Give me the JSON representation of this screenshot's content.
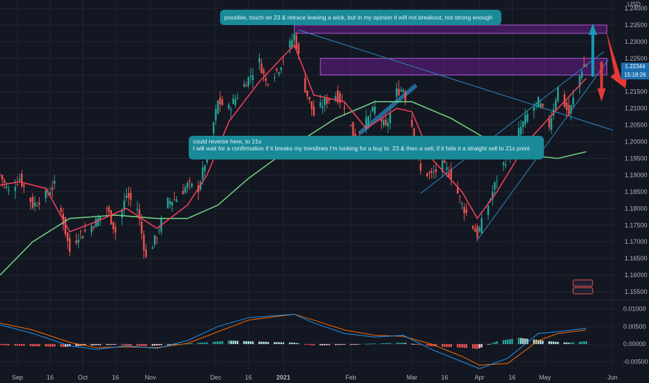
{
  "currency_label": "USD",
  "colors": {
    "bg": "#131722",
    "grid": "#222631",
    "up": "#26a69a",
    "down": "#ef5350",
    "ema_fast": "#f23f5a",
    "sma_slow": "#6fcf82",
    "zone": "#7b1fa2",
    "trendline": "#2a8cc7",
    "macd": "#2196f3",
    "signal": "#ff6d00",
    "annotation": "#1a8a99",
    "arrow_up": "#1a9bb5",
    "arrow_down": "#e53935"
  },
  "annotations": {
    "top_note": "possible, touch on 23 & retrace leaving a wick, but in my opinion it will not breakout, not strong enough",
    "mid_note_line1": "could reverse here, to 21s",
    "mid_note_line2": "I will wait for a confirmation if it breaks my trendines I'm looking for a buy to  23 & then a sell, if it fails it a straight sell to 21s point"
  },
  "last_price": {
    "value": "1.22344",
    "countdown": "15:18:26"
  },
  "chart_data": [
    {
      "type": "candlestick",
      "title": "",
      "x_ticks": [
        "Sep",
        "16",
        "Oct",
        "16",
        "Nov",
        "Dec",
        "16",
        "2021",
        "Feb",
        "Mar",
        "16",
        "Apr",
        "16",
        "May",
        "Jun"
      ],
      "y_ticks": [
        "1.24000",
        "1.23500",
        "1.23000",
        "1.22500",
        "1.22000",
        "1.21500",
        "1.21000",
        "1.20500",
        "1.20000",
        "1.19500",
        "1.19000",
        "1.18500",
        "1.18000",
        "1.17500",
        "1.17000",
        "1.16500",
        "1.16000",
        "1.15500"
      ],
      "ylim": [
        1.1525,
        1.2425
      ],
      "close_path": [
        [
          "2020-08-24",
          1.19
        ],
        [
          "2020-08-28",
          1.185
        ],
        [
          "2020-09-02",
          1.189
        ],
        [
          "2020-09-08",
          1.181
        ],
        [
          "2020-09-14",
          1.184
        ],
        [
          "2020-09-18",
          1.187
        ],
        [
          "2020-09-22",
          1.176
        ],
        [
          "2020-09-25",
          1.167
        ],
        [
          "2020-09-29",
          1.172
        ],
        [
          "2020-10-02",
          1.173
        ],
        [
          "2020-10-07",
          1.176
        ],
        [
          "2020-10-12",
          1.18
        ],
        [
          "2020-10-16",
          1.173
        ],
        [
          "2020-10-21",
          1.184
        ],
        [
          "2020-10-26",
          1.18
        ],
        [
          "2020-10-30",
          1.165
        ],
        [
          "2020-11-04",
          1.172
        ],
        [
          "2020-11-09",
          1.182
        ],
        [
          "2020-11-13",
          1.183
        ],
        [
          "2020-11-18",
          1.187
        ],
        [
          "2020-11-23",
          1.186
        ],
        [
          "2020-11-27",
          1.196
        ],
        [
          "2020-12-02",
          1.212
        ],
        [
          "2020-12-07",
          1.21
        ],
        [
          "2020-12-11",
          1.214
        ],
        [
          "2020-12-16",
          1.219
        ],
        [
          "2020-12-21",
          1.224
        ],
        [
          "2020-12-24",
          1.218
        ],
        [
          "2020-12-30",
          1.222
        ],
        [
          "2021-01-06",
          1.232
        ],
        [
          "2021-01-11",
          1.216
        ],
        [
          "2021-01-15",
          1.208
        ],
        [
          "2021-01-20",
          1.212
        ],
        [
          "2021-01-25",
          1.214
        ],
        [
          "2021-01-29",
          1.211
        ],
        [
          "2021-02-03",
          1.2
        ],
        [
          "2021-02-08",
          1.206
        ],
        [
          "2021-02-12",
          1.21
        ],
        [
          "2021-02-17",
          1.204
        ],
        [
          "2021-02-22",
          1.215
        ],
        [
          "2021-02-25",
          1.216
        ],
        [
          "2021-03-01",
          1.205
        ],
        [
          "2021-03-05",
          1.191
        ],
        [
          "2021-03-10",
          1.19
        ],
        [
          "2021-03-15",
          1.193
        ],
        [
          "2021-03-19",
          1.19
        ],
        [
          "2021-03-24",
          1.181
        ],
        [
          "2021-03-31",
          1.172
        ],
        [
          "2021-04-05",
          1.181
        ],
        [
          "2021-04-09",
          1.189
        ],
        [
          "2021-04-14",
          1.196
        ],
        [
          "2021-04-19",
          1.203
        ],
        [
          "2021-04-23",
          1.208
        ],
        [
          "2021-04-28",
          1.212
        ],
        [
          "2021-05-03",
          1.205
        ],
        [
          "2021-05-07",
          1.216
        ],
        [
          "2021-05-12",
          1.208
        ],
        [
          "2021-05-18",
          1.222
        ],
        [
          "2021-05-20",
          1.223
        ]
      ],
      "ema_fast": [
        [
          "2020-08-24",
          1.187
        ],
        [
          "2020-09-02",
          1.188
        ],
        [
          "2020-09-14",
          1.186
        ],
        [
          "2020-09-25",
          1.173
        ],
        [
          "2020-10-07",
          1.176
        ],
        [
          "2020-10-21",
          1.18
        ],
        [
          "2020-11-04",
          1.174
        ],
        [
          "2020-11-18",
          1.181
        ],
        [
          "2020-11-27",
          1.19
        ],
        [
          "2020-12-07",
          1.206
        ],
        [
          "2020-12-21",
          1.218
        ],
        [
          "2021-01-06",
          1.229
        ],
        [
          "2021-01-15",
          1.214
        ],
        [
          "2021-01-29",
          1.212
        ],
        [
          "2021-02-08",
          1.204
        ],
        [
          "2021-02-22",
          1.21
        ],
        [
          "2021-03-01",
          1.209
        ],
        [
          "2021-03-10",
          1.195
        ],
        [
          "2021-03-24",
          1.185
        ],
        [
          "2021-03-31",
          1.177
        ],
        [
          "2021-04-09",
          1.185
        ],
        [
          "2021-04-23",
          1.2
        ],
        [
          "2021-05-07",
          1.21
        ],
        [
          "2021-05-20",
          1.219
        ]
      ],
      "sma_slow": [
        [
          "2020-08-24",
          1.16
        ],
        [
          "2020-09-08",
          1.17
        ],
        [
          "2020-09-25",
          1.177
        ],
        [
          "2020-10-16",
          1.178
        ],
        [
          "2020-11-04",
          1.177
        ],
        [
          "2020-11-18",
          1.177
        ],
        [
          "2020-12-02",
          1.181
        ],
        [
          "2020-12-16",
          1.189
        ],
        [
          "2021-01-06",
          1.199
        ],
        [
          "2021-01-25",
          1.207
        ],
        [
          "2021-02-12",
          1.212
        ],
        [
          "2021-03-01",
          1.212
        ],
        [
          "2021-03-19",
          1.207
        ],
        [
          "2021-04-09",
          1.199
        ],
        [
          "2021-04-23",
          1.196
        ],
        [
          "2021-05-07",
          1.195
        ],
        [
          "2021-05-20",
          1.197
        ]
      ],
      "zones": [
        {
          "from": "2021-01-06",
          "to": "2021-06-01",
          "low": 1.2325,
          "high": 1.235
        },
        {
          "from": "2021-01-18",
          "to": "2021-06-01",
          "low": 1.22,
          "high": 1.225
        }
      ]
    },
    {
      "type": "macd",
      "y_ticks": [
        "0.01000",
        "0.00500",
        "0.00000",
        "-0.00500"
      ],
      "ylim": [
        -0.0075,
        0.0115
      ],
      "histogram": [
        [
          "2020-08-24",
          -0.0003
        ],
        [
          "2020-09-08",
          -0.0006
        ],
        [
          "2020-09-22",
          -0.0008
        ],
        [
          "2020-10-02",
          -0.0004
        ],
        [
          "2020-10-16",
          -0.0002
        ],
        [
          "2020-10-30",
          -0.0006
        ],
        [
          "2020-11-13",
          0.0
        ],
        [
          "2020-11-27",
          0.0005
        ],
        [
          "2020-12-07",
          0.001
        ],
        [
          "2020-12-21",
          0.0007
        ],
        [
          "2021-01-06",
          0.0004
        ],
        [
          "2021-01-15",
          -0.0004
        ],
        [
          "2021-01-29",
          -0.0002
        ],
        [
          "2021-02-12",
          0.0002
        ],
        [
          "2021-02-25",
          0.0004
        ],
        [
          "2021-03-10",
          -0.0006
        ],
        [
          "2021-03-24",
          -0.001
        ],
        [
          "2021-03-31",
          -0.0014
        ],
        [
          "2021-04-09",
          0.0008
        ],
        [
          "2021-04-19",
          0.0018
        ],
        [
          "2021-05-03",
          0.0008
        ],
        [
          "2021-05-12",
          0.0004
        ],
        [
          "2021-05-20",
          0.0008
        ]
      ],
      "macd_line": [
        [
          "2020-08-24",
          0.0055
        ],
        [
          "2020-09-08",
          0.003
        ],
        [
          "2020-09-25",
          -0.0005
        ],
        [
          "2020-10-07",
          -0.0015
        ],
        [
          "2020-10-21",
          -0.0005
        ],
        [
          "2020-11-04",
          -0.0012
        ],
        [
          "2020-11-18",
          0.001
        ],
        [
          "2020-12-02",
          0.005
        ],
        [
          "2020-12-16",
          0.0075
        ],
        [
          "2021-01-06",
          0.0085
        ],
        [
          "2021-01-15",
          0.006
        ],
        [
          "2021-01-29",
          0.003
        ],
        [
          "2021-02-12",
          0.002
        ],
        [
          "2021-02-25",
          0.0025
        ],
        [
          "2021-03-10",
          -0.0015
        ],
        [
          "2021-03-24",
          -0.005
        ],
        [
          "2021-04-01",
          -0.007
        ],
        [
          "2021-04-14",
          -0.004
        ],
        [
          "2021-04-28",
          0.003
        ],
        [
          "2021-05-07",
          0.0035
        ],
        [
          "2021-05-20",
          0.0045
        ]
      ],
      "signal_line": [
        [
          "2020-08-24",
          0.006
        ],
        [
          "2020-09-08",
          0.004
        ],
        [
          "2020-09-25",
          0.0005
        ],
        [
          "2020-10-07",
          -0.001
        ],
        [
          "2020-10-21",
          -0.0008
        ],
        [
          "2020-11-04",
          -0.001
        ],
        [
          "2020-11-18",
          0.0002
        ],
        [
          "2020-12-02",
          0.0035
        ],
        [
          "2020-12-16",
          0.0068
        ],
        [
          "2021-01-06",
          0.0085
        ],
        [
          "2021-01-15",
          0.0068
        ],
        [
          "2021-01-29",
          0.004
        ],
        [
          "2021-02-12",
          0.0025
        ],
        [
          "2021-02-25",
          0.0022
        ],
        [
          "2021-03-10",
          0.0
        ],
        [
          "2021-03-24",
          -0.0035
        ],
        [
          "2021-04-01",
          -0.006
        ],
        [
          "2021-04-14",
          -0.0055
        ],
        [
          "2021-04-28",
          0.001
        ],
        [
          "2021-05-07",
          0.003
        ],
        [
          "2021-05-20",
          0.004
        ]
      ]
    }
  ]
}
